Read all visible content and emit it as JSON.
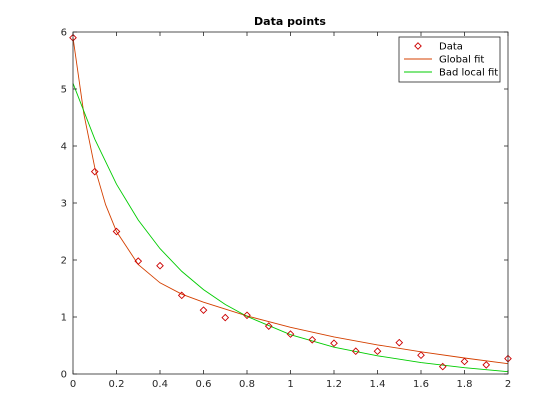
{
  "chart_data": {
    "type": "scatter",
    "title": "Data points",
    "xlabel": "",
    "ylabel": "",
    "xlim": [
      0,
      2
    ],
    "ylim": [
      0,
      6
    ],
    "xticks": [
      "0",
      "0.2",
      "0.4",
      "0.6",
      "0.8",
      "1",
      "1.2",
      "1.4",
      "1.6",
      "1.8",
      "2"
    ],
    "yticks": [
      "0",
      "1",
      "2",
      "3",
      "4",
      "5",
      "6"
    ],
    "grid": false,
    "legend_position": "top-right",
    "series": [
      {
        "name": "Data",
        "kind": "markers",
        "marker": "diamond",
        "color": "#cc0000",
        "x": [
          0,
          0.1,
          0.2,
          0.3,
          0.4,
          0.5,
          0.6,
          0.7,
          0.8,
          0.9,
          1.0,
          1.1,
          1.2,
          1.3,
          1.4,
          1.5,
          1.6,
          1.7,
          1.8,
          1.9,
          2.0
        ],
        "y": [
          5.9,
          3.55,
          2.5,
          1.98,
          1.9,
          1.38,
          1.12,
          0.99,
          1.03,
          0.84,
          0.7,
          0.6,
          0.54,
          0.4,
          0.4,
          0.55,
          0.33,
          0.13,
          0.22,
          0.16,
          0.27
        ]
      },
      {
        "name": "Global fit",
        "kind": "line",
        "color": "#d44000",
        "x": [
          0,
          0.05,
          0.1,
          0.15,
          0.2,
          0.3,
          0.4,
          0.5,
          0.6,
          0.8,
          1.0,
          1.2,
          1.4,
          1.6,
          1.8,
          2.0
        ],
        "y": [
          5.9,
          4.56,
          3.62,
          2.97,
          2.5,
          1.92,
          1.6,
          1.4,
          1.26,
          1.02,
          0.82,
          0.65,
          0.51,
          0.39,
          0.28,
          0.18
        ]
      },
      {
        "name": "Bad local fit",
        "kind": "line",
        "color": "#00cc00",
        "x": [
          0,
          0.1,
          0.2,
          0.3,
          0.4,
          0.5,
          0.6,
          0.7,
          0.8,
          1.0,
          1.2,
          1.4,
          1.6,
          1.8,
          2.0
        ],
        "y": [
          5.1,
          4.12,
          3.33,
          2.7,
          2.2,
          1.8,
          1.48,
          1.22,
          1.01,
          0.69,
          0.47,
          0.32,
          0.2,
          0.11,
          0.04
        ]
      }
    ]
  }
}
